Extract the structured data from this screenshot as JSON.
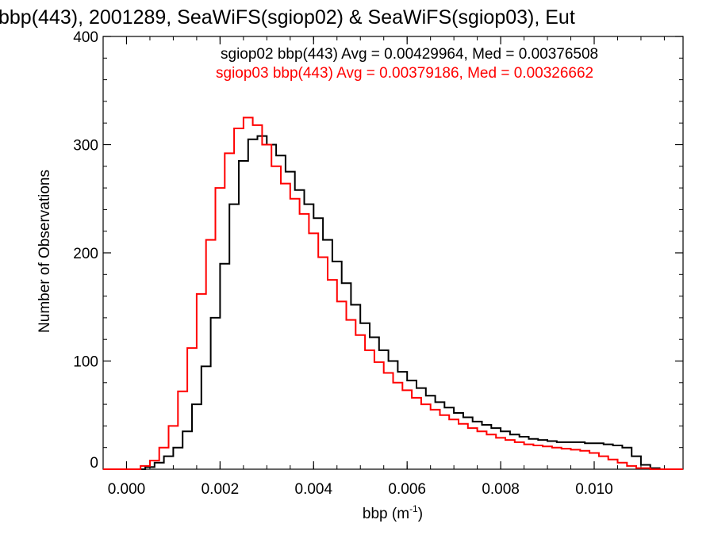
{
  "chart_data": {
    "type": "line",
    "title": "bbp(443), 2001289, SeaWiFS(sgiop02) & SeaWiFS(sgiop03), Eut",
    "xlabel": "bbp (m",
    "xlabel_sup": "-1",
    "xlabel_close": ")",
    "ylabel": "Number of Observations",
    "xlim": [
      -0.0005,
      0.0119
    ],
    "ylim": [
      0,
      400
    ],
    "x_ticks": [
      {
        "value": 0.0,
        "label": "0.000"
      },
      {
        "value": 0.002,
        "label": "0.002"
      },
      {
        "value": 0.004,
        "label": "0.004"
      },
      {
        "value": 0.006,
        "label": "0.006"
      },
      {
        "value": 0.008,
        "label": "0.008"
      },
      {
        "value": 0.01,
        "label": "0.010"
      }
    ],
    "x_minor_step": 0.0005,
    "y_ticks": [
      {
        "value": 0,
        "label": "0"
      },
      {
        "value": 100,
        "label": "100"
      },
      {
        "value": 200,
        "label": "200"
      },
      {
        "value": 300,
        "label": "300"
      },
      {
        "value": 400,
        "label": "400"
      }
    ],
    "y_minor_step": 20,
    "annotations": [
      {
        "text": "sgiop02 bbp(443) Avg = 0.00429964, Med = 0.00376508",
        "color": "#000000"
      },
      {
        "text": "sgiop03 bbp(443) Avg = 0.00379186, Med = 0.00326662",
        "color": "#ff0000"
      }
    ],
    "series": [
      {
        "color": "#000000",
        "points": [
          [
            -0.0005,
            0
          ],
          [
            0.0002,
            0
          ],
          [
            0.0004,
            2
          ],
          [
            0.0006,
            6
          ],
          [
            0.0008,
            12
          ],
          [
            0.001,
            20
          ],
          [
            0.0012,
            35
          ],
          [
            0.0014,
            60
          ],
          [
            0.0016,
            95
          ],
          [
            0.0018,
            140
          ],
          [
            0.002,
            190
          ],
          [
            0.0022,
            245
          ],
          [
            0.0024,
            285
          ],
          [
            0.0026,
            305
          ],
          [
            0.0028,
            308
          ],
          [
            0.003,
            300
          ],
          [
            0.0032,
            290
          ],
          [
            0.0034,
            275
          ],
          [
            0.0036,
            258
          ],
          [
            0.0038,
            245
          ],
          [
            0.004,
            232
          ],
          [
            0.0042,
            212
          ],
          [
            0.0044,
            192
          ],
          [
            0.0046,
            172
          ],
          [
            0.0048,
            152
          ],
          [
            0.005,
            135
          ],
          [
            0.0052,
            122
          ],
          [
            0.0054,
            110
          ],
          [
            0.0056,
            100
          ],
          [
            0.0058,
            90
          ],
          [
            0.006,
            82
          ],
          [
            0.0062,
            75
          ],
          [
            0.0064,
            68
          ],
          [
            0.0066,
            62
          ],
          [
            0.0068,
            57
          ],
          [
            0.007,
            52
          ],
          [
            0.0072,
            48
          ],
          [
            0.0074,
            44
          ],
          [
            0.0076,
            41
          ],
          [
            0.0078,
            38
          ],
          [
            0.008,
            35
          ],
          [
            0.0082,
            32
          ],
          [
            0.0084,
            30
          ],
          [
            0.0086,
            28
          ],
          [
            0.0088,
            27
          ],
          [
            0.009,
            26
          ],
          [
            0.0092,
            25
          ],
          [
            0.0094,
            25
          ],
          [
            0.0096,
            25
          ],
          [
            0.0098,
            24
          ],
          [
            0.01,
            24
          ],
          [
            0.0102,
            23
          ],
          [
            0.0104,
            22
          ],
          [
            0.0106,
            20
          ],
          [
            0.0108,
            12
          ],
          [
            0.011,
            4
          ],
          [
            0.0112,
            1
          ],
          [
            0.0114,
            0
          ],
          [
            0.0119,
            0
          ]
        ]
      },
      {
        "color": "#ff0000",
        "points": [
          [
            -0.0005,
            0
          ],
          [
            0.0001,
            0
          ],
          [
            0.0003,
            3
          ],
          [
            0.0005,
            8
          ],
          [
            0.0007,
            20
          ],
          [
            0.0009,
            40
          ],
          [
            0.0011,
            72
          ],
          [
            0.0013,
            112
          ],
          [
            0.0015,
            162
          ],
          [
            0.0017,
            212
          ],
          [
            0.0019,
            260
          ],
          [
            0.0021,
            292
          ],
          [
            0.0023,
            315
          ],
          [
            0.0025,
            325
          ],
          [
            0.0027,
            318
          ],
          [
            0.0029,
            300
          ],
          [
            0.0031,
            280
          ],
          [
            0.0033,
            264
          ],
          [
            0.0035,
            250
          ],
          [
            0.0037,
            236
          ],
          [
            0.0039,
            218
          ],
          [
            0.0041,
            196
          ],
          [
            0.0043,
            175
          ],
          [
            0.0045,
            155
          ],
          [
            0.0047,
            138
          ],
          [
            0.0049,
            124
          ],
          [
            0.0051,
            110
          ],
          [
            0.0053,
            99
          ],
          [
            0.0055,
            89
          ],
          [
            0.0057,
            80
          ],
          [
            0.0059,
            73
          ],
          [
            0.0061,
            66
          ],
          [
            0.0063,
            60
          ],
          [
            0.0065,
            55
          ],
          [
            0.0067,
            50
          ],
          [
            0.0069,
            46
          ],
          [
            0.0071,
            42
          ],
          [
            0.0073,
            38
          ],
          [
            0.0075,
            35
          ],
          [
            0.0077,
            32
          ],
          [
            0.0079,
            29
          ],
          [
            0.0081,
            27
          ],
          [
            0.0083,
            25
          ],
          [
            0.0085,
            23
          ],
          [
            0.0087,
            22
          ],
          [
            0.0089,
            21
          ],
          [
            0.0091,
            20
          ],
          [
            0.0093,
            19
          ],
          [
            0.0095,
            18
          ],
          [
            0.0097,
            17
          ],
          [
            0.0099,
            15
          ],
          [
            0.0101,
            12
          ],
          [
            0.0103,
            9
          ],
          [
            0.0105,
            6
          ],
          [
            0.0107,
            3
          ],
          [
            0.0109,
            1
          ],
          [
            0.0112,
            0
          ],
          [
            0.0119,
            0
          ]
        ]
      }
    ]
  }
}
